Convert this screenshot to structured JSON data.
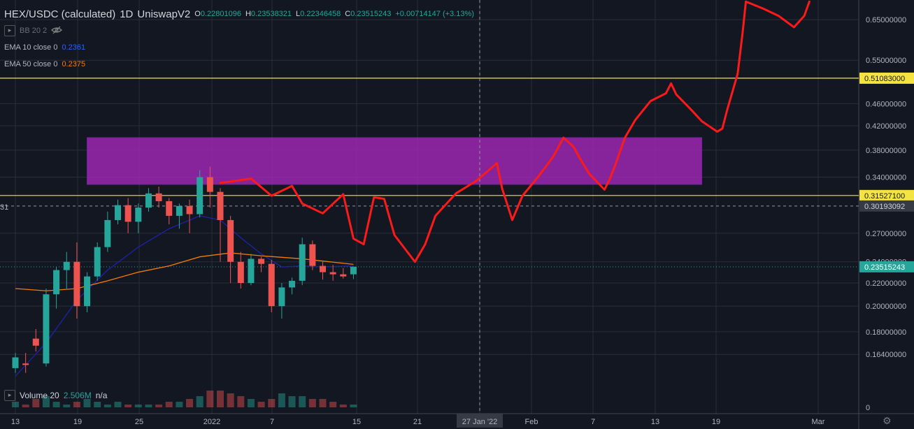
{
  "header": {
    "symbol": "HEX/USDC (calculated)",
    "interval": "1D",
    "exchange": "UniswapV2",
    "ohlc": [
      {
        "k": "O",
        "v": "0.22801096"
      },
      {
        "k": "H",
        "v": "0.23538321"
      },
      {
        "k": "L",
        "v": "0.22346458"
      },
      {
        "k": "C",
        "v": "0.23515243"
      }
    ],
    "change": "+0.00714147 (+3.13%)"
  },
  "indicators": [
    {
      "label": "BB 20 2",
      "value": ""
    },
    {
      "label": "EMA 10 close 0",
      "value": "0.2361",
      "color": "#1e22aa"
    },
    {
      "label": "EMA 50 close 0",
      "value": "0.2375",
      "color": "#f57c00"
    }
  ],
  "volume": {
    "label": "Volume 20",
    "value": "2.506M",
    "extra": "n/a"
  },
  "chart_data": {
    "type": "candlestick",
    "log_scale": true,
    "price_range": [
      0.15,
      0.68
    ],
    "y_ticks": [
      "0.65000000",
      "0.55000000",
      "0.46000000",
      "0.42000000",
      "0.38000000",
      "0.34000000",
      "0.27000000",
      "0.24000000",
      "0.22000000",
      "0.20000000",
      "0.18000000",
      "0.16400000"
    ],
    "x_ticks": [
      "13",
      "19",
      "25",
      "2022",
      "7",
      "15",
      "21",
      "27 Jan '22",
      "Feb",
      "7",
      "13",
      "19",
      "Mar"
    ],
    "price_labels": [
      {
        "text": "0.51083000",
        "value": 0.51083,
        "style": "yellow"
      },
      {
        "text": "0.31527100",
        "value": 0.315271,
        "style": "yellow"
      },
      {
        "text": "0.30193092",
        "value": 0.30193092,
        "style": "gray"
      },
      {
        "text": "0.23515243",
        "value": 0.23515243,
        "style": "teal"
      }
    ],
    "left_cut_label": "31",
    "volume_axis_label": "0",
    "horizontal_lines": [
      0.51083,
      0.315271
    ],
    "rectangle": {
      "from_day": 19,
      "to_day": 79,
      "top": 0.4,
      "bottom": 0.33,
      "color": "#9c27b0"
    },
    "candles": [
      {
        "day": 12,
        "o": 0.155,
        "h": 0.165,
        "l": 0.152,
        "c": 0.162
      },
      {
        "day": 13,
        "o": 0.158,
        "h": 0.165,
        "l": 0.152,
        "c": 0.157
      },
      {
        "day": 14,
        "o": 0.175,
        "h": 0.182,
        "l": 0.166,
        "c": 0.17
      },
      {
        "day": 15,
        "o": 0.158,
        "h": 0.215,
        "l": 0.156,
        "c": 0.21
      },
      {
        "day": 16,
        "o": 0.21,
        "h": 0.235,
        "l": 0.198,
        "c": 0.232
      },
      {
        "day": 17,
        "o": 0.232,
        "h": 0.25,
        "l": 0.215,
        "c": 0.24
      },
      {
        "day": 18,
        "o": 0.24,
        "h": 0.26,
        "l": 0.19,
        "c": 0.2
      },
      {
        "day": 19,
        "o": 0.2,
        "h": 0.23,
        "l": 0.195,
        "c": 0.226
      },
      {
        "day": 20,
        "o": 0.226,
        "h": 0.26,
        "l": 0.222,
        "c": 0.255
      },
      {
        "day": 21,
        "o": 0.255,
        "h": 0.295,
        "l": 0.25,
        "c": 0.285
      },
      {
        "day": 22,
        "o": 0.285,
        "h": 0.31,
        "l": 0.28,
        "c": 0.303
      },
      {
        "day": 23,
        "o": 0.303,
        "h": 0.312,
        "l": 0.27,
        "c": 0.283
      },
      {
        "day": 24,
        "o": 0.283,
        "h": 0.305,
        "l": 0.27,
        "c": 0.3
      },
      {
        "day": 25,
        "o": 0.3,
        "h": 0.325,
        "l": 0.295,
        "c": 0.318
      },
      {
        "day": 26,
        "o": 0.318,
        "h": 0.327,
        "l": 0.3,
        "c": 0.308
      },
      {
        "day": 27,
        "o": 0.308,
        "h": 0.312,
        "l": 0.28,
        "c": 0.29
      },
      {
        "day": 28,
        "o": 0.29,
        "h": 0.305,
        "l": 0.275,
        "c": 0.302
      },
      {
        "day": 29,
        "o": 0.302,
        "h": 0.31,
        "l": 0.27,
        "c": 0.292
      },
      {
        "day": 30,
        "o": 0.292,
        "h": 0.35,
        "l": 0.288,
        "c": 0.34
      },
      {
        "day": 31,
        "o": 0.34,
        "h": 0.355,
        "l": 0.3,
        "c": 0.32
      },
      {
        "day": 32,
        "o": 0.32,
        "h": 0.325,
        "l": 0.24,
        "c": 0.285
      },
      {
        "day": 33,
        "o": 0.285,
        "h": 0.29,
        "l": 0.22,
        "c": 0.24
      },
      {
        "day": 34,
        "o": 0.24,
        "h": 0.25,
        "l": 0.215,
        "c": 0.22
      },
      {
        "day": 35,
        "o": 0.22,
        "h": 0.248,
        "l": 0.218,
        "c": 0.243
      },
      {
        "day": 36,
        "o": 0.243,
        "h": 0.245,
        "l": 0.23,
        "c": 0.238
      },
      {
        "day": 37,
        "o": 0.238,
        "h": 0.242,
        "l": 0.195,
        "c": 0.2
      },
      {
        "day": 38,
        "o": 0.2,
        "h": 0.22,
        "l": 0.19,
        "c": 0.216
      },
      {
        "day": 39,
        "o": 0.216,
        "h": 0.225,
        "l": 0.21,
        "c": 0.222
      },
      {
        "day": 40,
        "o": 0.222,
        "h": 0.265,
        "l": 0.218,
        "c": 0.258
      },
      {
        "day": 41,
        "o": 0.258,
        "h": 0.262,
        "l": 0.232,
        "c": 0.236
      },
      {
        "day": 42,
        "o": 0.236,
        "h": 0.24,
        "l": 0.223,
        "c": 0.23
      },
      {
        "day": 43,
        "o": 0.23,
        "h": 0.237,
        "l": 0.222,
        "c": 0.228
      },
      {
        "day": 44,
        "o": 0.228,
        "h": 0.234,
        "l": 0.224,
        "c": 0.226
      },
      {
        "day": 45,
        "o": 0.228,
        "h": 0.2354,
        "l": 0.2235,
        "c": 0.2352
      }
    ],
    "volumes": [
      2,
      1,
      3,
      4,
      2,
      1,
      2,
      3,
      2,
      1,
      2,
      1,
      1,
      1,
      1,
      2,
      2,
      3,
      4,
      6,
      6,
      5,
      4,
      3,
      2,
      3,
      5,
      4,
      4,
      3,
      3,
      2,
      1,
      1
    ],
    "ema10": [
      [
        12,
        0.15
      ],
      [
        15,
        0.172
      ],
      [
        18,
        0.205
      ],
      [
        21,
        0.232
      ],
      [
        24,
        0.255
      ],
      [
        27,
        0.275
      ],
      [
        30,
        0.29
      ],
      [
        32,
        0.285
      ],
      [
        34,
        0.265
      ],
      [
        36,
        0.248
      ],
      [
        38,
        0.235
      ],
      [
        40,
        0.236
      ],
      [
        42,
        0.235
      ],
      [
        45,
        0.236
      ]
    ],
    "ema50": [
      [
        12,
        0.215
      ],
      [
        15,
        0.213
      ],
      [
        18,
        0.215
      ],
      [
        21,
        0.222
      ],
      [
        24,
        0.23
      ],
      [
        27,
        0.236
      ],
      [
        30,
        0.245
      ],
      [
        33,
        0.249
      ],
      [
        36,
        0.246
      ],
      [
        40,
        0.243
      ],
      [
        45,
        0.2375
      ]
    ],
    "drawing": [
      [
        32,
        0.332
      ],
      [
        35,
        0.338
      ],
      [
        37,
        0.315
      ],
      [
        39,
        0.328
      ],
      [
        40,
        0.305
      ],
      [
        42,
        0.293
      ],
      [
        44,
        0.317
      ],
      [
        45,
        0.264
      ],
      [
        46,
        0.258
      ],
      [
        47,
        0.313
      ],
      [
        48,
        0.311
      ],
      [
        49,
        0.268
      ],
      [
        51,
        0.24
      ],
      [
        52,
        0.258
      ],
      [
        53,
        0.29
      ],
      [
        55,
        0.318
      ],
      [
        57,
        0.335
      ],
      [
        59,
        0.36
      ],
      [
        59.5,
        0.325
      ],
      [
        60.5,
        0.285
      ],
      [
        61.5,
        0.315
      ],
      [
        63,
        0.34
      ],
      [
        64.5,
        0.37
      ],
      [
        65.5,
        0.4
      ],
      [
        66.5,
        0.385
      ],
      [
        67,
        0.37
      ],
      [
        68,
        0.345
      ],
      [
        69.5,
        0.323
      ],
      [
        70,
        0.337
      ],
      [
        70.5,
        0.355
      ],
      [
        71.5,
        0.4
      ],
      [
        72.5,
        0.43
      ],
      [
        74,
        0.465
      ],
      [
        75.5,
        0.48
      ],
      [
        76,
        0.5
      ],
      [
        76.5,
        0.478
      ],
      [
        78,
        0.448
      ],
      [
        79,
        0.428
      ],
      [
        80.5,
        0.41
      ],
      [
        81,
        0.415
      ],
      [
        81.5,
        0.45
      ],
      [
        82.5,
        0.52
      ],
      [
        83,
        0.62
      ],
      [
        83.3,
        0.7
      ],
      [
        85,
        0.68
      ],
      [
        86.5,
        0.66
      ],
      [
        88,
        0.63
      ],
      [
        89,
        0.66
      ],
      [
        89.5,
        0.7
      ]
    ],
    "crosshair": {
      "day": 60,
      "value": 0.30193092,
      "date_label": "27 Jan '22"
    }
  }
}
